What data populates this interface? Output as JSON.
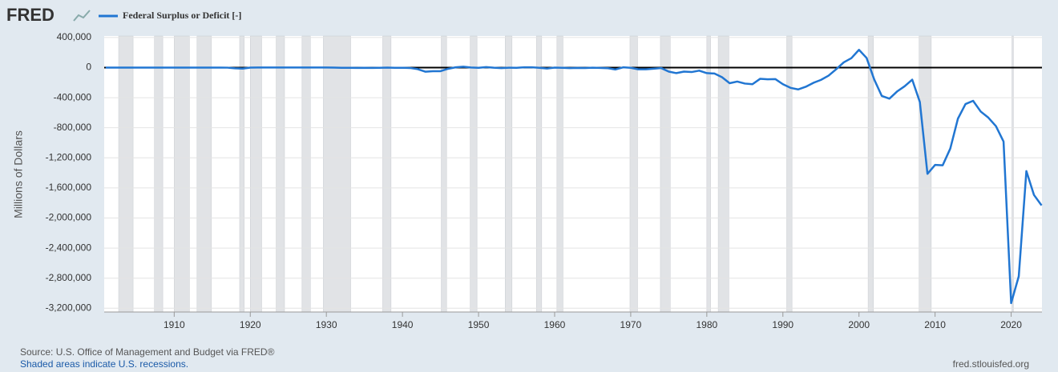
{
  "chart_data": {
    "type": "line",
    "logo": "FRED",
    "y_label": "Millions of Dollars",
    "source": "Source: U.S. Office of Management and Budget via FRED®",
    "note": "Shaded areas indicate U.S. recessions.",
    "url": "fred.stlouisfed.org",
    "x": [
      1901,
      1902,
      1903,
      1904,
      1905,
      1906,
      1907,
      1908,
      1909,
      1910,
      1911,
      1912,
      1913,
      1914,
      1915,
      1916,
      1917,
      1918,
      1919,
      1920,
      1921,
      1922,
      1923,
      1924,
      1925,
      1926,
      1927,
      1928,
      1929,
      1930,
      1931,
      1932,
      1933,
      1934,
      1935,
      1936,
      1937,
      1938,
      1939,
      1940,
      1941,
      1942,
      1943,
      1944,
      1945,
      1946,
      1947,
      1948,
      1949,
      1950,
      1951,
      1952,
      1953,
      1954,
      1955,
      1956,
      1957,
      1958,
      1959,
      1960,
      1961,
      1962,
      1963,
      1964,
      1965,
      1966,
      1967,
      1968,
      1969,
      1970,
      1971,
      1972,
      1973,
      1974,
      1975,
      1976,
      1977,
      1978,
      1979,
      1980,
      1981,
      1982,
      1983,
      1984,
      1985,
      1986,
      1987,
      1988,
      1989,
      1990,
      1991,
      1992,
      1993,
      1994,
      1995,
      1996,
      1997,
      1998,
      1999,
      2000,
      2001,
      2002,
      2003,
      2004,
      2005,
      2006,
      2007,
      2008,
      2009,
      2010,
      2011,
      2012,
      2013,
      2014,
      2015,
      2016,
      2017,
      2018,
      2019,
      2020,
      2021,
      2022,
      2023,
      2024
    ],
    "series": [
      {
        "name": "Federal Surplus or Deficit [-]",
        "color": "#2176d2",
        "values": [
          63,
          77,
          45,
          -43,
          -23,
          25,
          87,
          -57,
          -89,
          -18,
          11,
          3,
          0,
          -1,
          -63,
          48,
          -853,
          -9032,
          -13363,
          291,
          509,
          736,
          713,
          963,
          717,
          865,
          1155,
          939,
          734,
          738,
          -462,
          -2735,
          -2602,
          -3586,
          -2803,
          -4304,
          -2193,
          -89,
          -2846,
          -2920,
          -4941,
          -20503,
          -54554,
          -47557,
          -47553,
          -15936,
          4018,
          11796,
          580,
          -3119,
          6102,
          -1519,
          -6493,
          -1154,
          -2993,
          3947,
          3412,
          -2769,
          -12849,
          301,
          -3335,
          -7146,
          -4756,
          -5915,
          -1411,
          -3698,
          -8643,
          -25161,
          3242,
          -2842,
          -23033,
          -23373,
          -14908,
          -6135,
          -53242,
          -73732,
          -53659,
          -59185,
          -40726,
          -73830,
          -78968,
          -127977,
          -207802,
          -185367,
          -212308,
          -221227,
          -149730,
          -155178,
          -152639,
          -221036,
          -269238,
          -290321,
          -255051,
          -203186,
          -163952,
          -107431,
          -21884,
          69270,
          125610,
          236241,
          128236,
          -157758,
          -377585,
          -412727,
          -318346,
          -248181,
          -160701,
          -458553,
          -1412688,
          -1294373,
          -1299599,
          -1076573,
          -679775,
          -484600,
          -441960,
          -584651,
          -665446,
          -779137,
          -983592,
          -3131917,
          -2775306,
          -1375905,
          -1693729,
          -1832823
        ]
      }
    ],
    "recessions": [
      [
        1902.7,
        1904.6
      ],
      [
        1907.4,
        1908.5
      ],
      [
        1910.0,
        1912.0
      ],
      [
        1913.0,
        1914.9
      ],
      [
        1918.6,
        1919.2
      ],
      [
        1920.0,
        1921.5
      ],
      [
        1923.4,
        1924.5
      ],
      [
        1926.8,
        1927.9
      ],
      [
        1929.6,
        1933.2
      ],
      [
        1937.4,
        1938.5
      ],
      [
        1945.1,
        1945.8
      ],
      [
        1948.9,
        1949.8
      ],
      [
        1953.5,
        1954.4
      ],
      [
        1957.6,
        1958.3
      ],
      [
        1960.3,
        1961.1
      ],
      [
        1969.9,
        1970.9
      ],
      [
        1973.9,
        1975.2
      ],
      [
        1980.0,
        1980.5
      ],
      [
        1981.5,
        1982.9
      ],
      [
        1990.5,
        1991.2
      ],
      [
        2001.2,
        2001.9
      ],
      [
        2007.9,
        2009.5
      ],
      [
        2020.1,
        2020.3
      ]
    ],
    "recession_color": "#e1e3e6",
    "xlim": [
      1900.8,
      2024.05
    ],
    "xticks": [
      1910,
      1920,
      1930,
      1940,
      1950,
      1960,
      1970,
      1980,
      1990,
      2000,
      2010,
      2020
    ],
    "ylim": [
      -3250000,
      420000
    ],
    "yticks": [
      {
        "value": 400000,
        "label": "400,000"
      },
      0,
      {
        "value": -400000,
        "label": "-400,000"
      },
      {
        "value": -800000,
        "label": "-800,000"
      },
      {
        "value": -1200000,
        "label": "-1,200,000"
      },
      {
        "value": -1600000,
        "label": "-1,600,000"
      },
      {
        "value": -2000000,
        "label": "-2,000,000"
      },
      {
        "value": -2400000,
        "label": "-2,400,000"
      },
      {
        "value": -2800000,
        "label": "-2,800,000"
      },
      {
        "value": -3200000,
        "label": "-3,200,000"
      }
    ],
    "grid": true
  }
}
